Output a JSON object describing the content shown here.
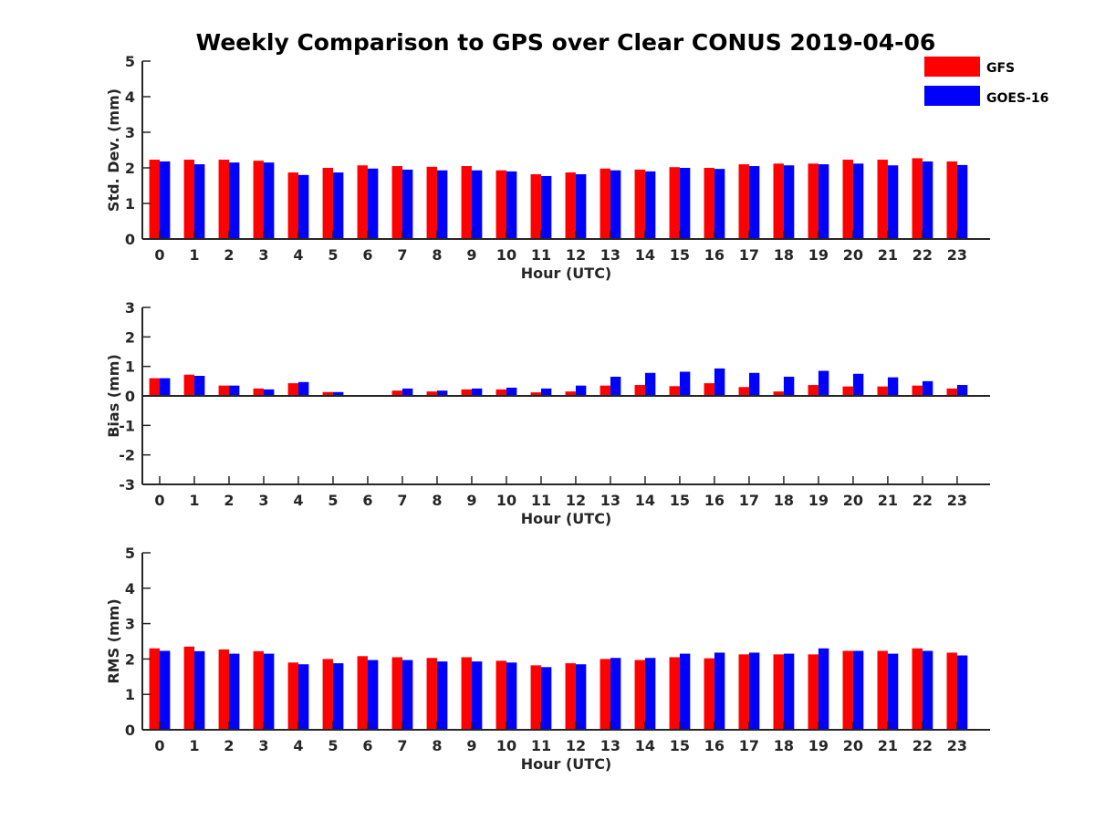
{
  "title": "Weekly Comparison to GPS over Clear CONUS 2019-04-06",
  "legend": [
    {
      "name": "GFS",
      "color": "#ff0000"
    },
    {
      "name": "GOES-16",
      "color": "#0000ff"
    }
  ],
  "chart_data": [
    {
      "type": "bar",
      "categories": [
        "0",
        "1",
        "2",
        "3",
        "4",
        "5",
        "6",
        "7",
        "8",
        "9",
        "10",
        "11",
        "12",
        "13",
        "14",
        "15",
        "16",
        "17",
        "18",
        "19",
        "20",
        "21",
        "22",
        "23"
      ],
      "xlabel": "Hour (UTC)",
      "ylabel": "Std. Dev. (mm)",
      "ylim": [
        0,
        5
      ],
      "yticks": [
        0,
        1,
        2,
        3,
        4,
        5
      ],
      "legend_position": "top-right",
      "series": [
        {
          "name": "GFS",
          "color": "#ff0000",
          "values": [
            2.23,
            2.23,
            2.23,
            2.2,
            1.87,
            2.0,
            2.07,
            2.05,
            2.03,
            2.05,
            1.93,
            1.82,
            1.87,
            1.98,
            1.95,
            2.02,
            2.0,
            2.1,
            2.12,
            2.12,
            2.23,
            2.23,
            2.27,
            2.18
          ]
        },
        {
          "name": "GOES-16",
          "color": "#0000ff",
          "values": [
            2.18,
            2.1,
            2.15,
            2.15,
            1.8,
            1.87,
            1.98,
            1.95,
            1.93,
            1.93,
            1.9,
            1.77,
            1.82,
            1.93,
            1.9,
            2.0,
            1.97,
            2.05,
            2.07,
            2.1,
            2.12,
            2.07,
            2.18,
            2.08
          ]
        }
      ]
    },
    {
      "type": "bar",
      "categories": [
        "0",
        "1",
        "2",
        "3",
        "4",
        "5",
        "6",
        "7",
        "8",
        "9",
        "10",
        "11",
        "12",
        "13",
        "14",
        "15",
        "16",
        "17",
        "18",
        "19",
        "20",
        "21",
        "22",
        "23"
      ],
      "xlabel": "Hour (UTC)",
      "ylabel": "Bias (mm)",
      "ylim": [
        -3,
        3
      ],
      "yticks": [
        -3,
        -2,
        -1,
        0,
        1,
        2,
        3
      ],
      "series": [
        {
          "name": "GFS",
          "color": "#ff0000",
          "values": [
            0.6,
            0.72,
            0.35,
            0.25,
            0.43,
            0.13,
            0.02,
            0.18,
            0.15,
            0.22,
            0.22,
            0.12,
            0.15,
            0.35,
            0.37,
            0.33,
            0.43,
            0.3,
            0.15,
            0.37,
            0.32,
            0.32,
            0.35,
            0.25
          ]
        },
        {
          "name": "GOES-16",
          "color": "#0000ff",
          "values": [
            0.6,
            0.68,
            0.35,
            0.22,
            0.47,
            0.13,
            0.03,
            0.25,
            0.18,
            0.25,
            0.28,
            0.25,
            0.35,
            0.65,
            0.78,
            0.82,
            0.93,
            0.78,
            0.65,
            0.85,
            0.75,
            0.63,
            0.5,
            0.37
          ]
        }
      ]
    },
    {
      "type": "bar",
      "categories": [
        "0",
        "1",
        "2",
        "3",
        "4",
        "5",
        "6",
        "7",
        "8",
        "9",
        "10",
        "11",
        "12",
        "13",
        "14",
        "15",
        "16",
        "17",
        "18",
        "19",
        "20",
        "21",
        "22",
        "23"
      ],
      "xlabel": "Hour (UTC)",
      "ylabel": "RMS (mm)",
      "ylim": [
        0,
        5
      ],
      "yticks": [
        0,
        1,
        2,
        3,
        4,
        5
      ],
      "series": [
        {
          "name": "GFS",
          "color": "#ff0000",
          "values": [
            2.3,
            2.35,
            2.27,
            2.22,
            1.9,
            2.0,
            2.08,
            2.05,
            2.03,
            2.05,
            1.95,
            1.82,
            1.88,
            2.0,
            1.97,
            2.05,
            2.02,
            2.13,
            2.13,
            2.13,
            2.23,
            2.23,
            2.3,
            2.18
          ]
        },
        {
          "name": "GOES-16",
          "color": "#0000ff",
          "values": [
            2.23,
            2.22,
            2.15,
            2.15,
            1.85,
            1.88,
            1.97,
            1.97,
            1.93,
            1.93,
            1.9,
            1.77,
            1.85,
            2.03,
            2.03,
            2.15,
            2.18,
            2.18,
            2.15,
            2.3,
            2.23,
            2.15,
            2.23,
            2.1
          ]
        }
      ]
    }
  ]
}
